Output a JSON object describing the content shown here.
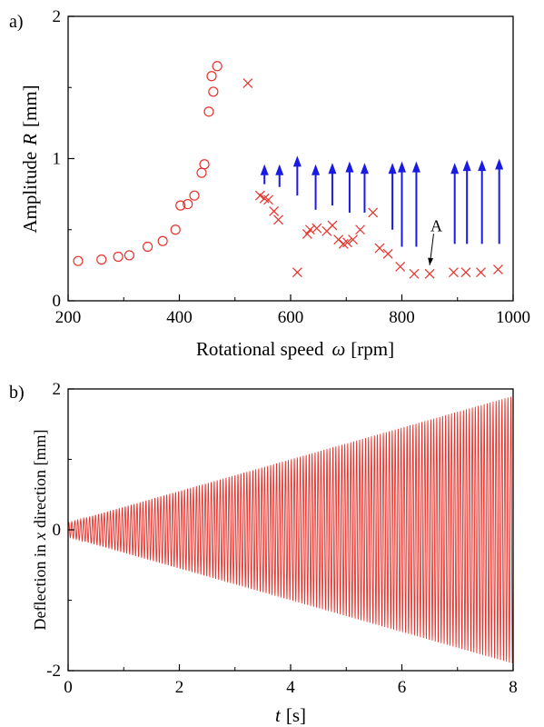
{
  "chart_data": [
    {
      "panel_label": "a)",
      "type": "scatter",
      "xlabel": {
        "text": "Rotational speed",
        "symbol": "ω",
        "unit": "[rpm]"
      },
      "ylabel": {
        "text": "Amplitude",
        "symbol": "R",
        "unit": "[mm]"
      },
      "xlim": [
        200,
        1000
      ],
      "ylim": [
        0,
        2
      ],
      "xticks": [
        "200",
        "400",
        "600",
        "800",
        "1000"
      ],
      "yticks": [
        "0",
        "1",
        "2"
      ],
      "colors": {
        "circles": "#e8322b",
        "crosses": "#e8322b",
        "arrows": "#1a1ae6"
      },
      "series": [
        {
          "marker": "circle",
          "points": [
            [
              218,
              0.28
            ],
            [
              260,
              0.29
            ],
            [
              290,
              0.31
            ],
            [
              310,
              0.32
            ],
            [
              343,
              0.38
            ],
            [
              370,
              0.42
            ],
            [
              393,
              0.5
            ],
            [
              402,
              0.67
            ],
            [
              415,
              0.68
            ],
            [
              427,
              0.74
            ],
            [
              440,
              0.9
            ],
            [
              445,
              0.96
            ],
            [
              453,
              1.33
            ],
            [
              458,
              1.58
            ],
            [
              461,
              1.47
            ],
            [
              468,
              1.65
            ]
          ]
        },
        {
          "marker": "cross",
          "points": [
            [
              523,
              1.53
            ],
            [
              545,
              0.74
            ],
            [
              553,
              0.72
            ],
            [
              560,
              0.71
            ],
            [
              570,
              0.63
            ],
            [
              578,
              0.57
            ],
            [
              612,
              0.2
            ],
            [
              630,
              0.47
            ],
            [
              635,
              0.5
            ],
            [
              647,
              0.51
            ],
            [
              665,
              0.49
            ],
            [
              675,
              0.53
            ],
            [
              686,
              0.43
            ],
            [
              695,
              0.4
            ],
            [
              702,
              0.41
            ],
            [
              712,
              0.43
            ],
            [
              725,
              0.5
            ],
            [
              748,
              0.62
            ],
            [
              760,
              0.37
            ],
            [
              775,
              0.33
            ],
            [
              797,
              0.24
            ],
            [
              822,
              0.19
            ],
            [
              850,
              0.19
            ],
            [
              893,
              0.2
            ],
            [
              915,
              0.2
            ],
            [
              942,
              0.2
            ],
            [
              973,
              0.22
            ]
          ]
        },
        {
          "marker": "arrow-up",
          "points": [
            [
              553,
              0.82,
              0.96
            ],
            [
              580,
              0.8,
              0.96
            ],
            [
              612,
              0.74,
              1.02
            ],
            [
              645,
              0.64,
              0.96
            ],
            [
              675,
              0.67,
              0.97
            ],
            [
              706,
              0.62,
              0.98
            ],
            [
              733,
              0.62,
              0.97
            ],
            [
              783,
              0.5,
              0.97
            ],
            [
              800,
              0.38,
              0.98
            ],
            [
              826,
              0.38,
              0.98
            ],
            [
              895,
              0.4,
              0.97
            ],
            [
              917,
              0.4,
              0.99
            ],
            [
              944,
              0.4,
              0.99
            ],
            [
              975,
              0.4,
              1.0
            ]
          ]
        }
      ],
      "annotation": {
        "text": "A",
        "x": 862,
        "y": 0.49,
        "target": [
          850,
          0.25
        ]
      }
    },
    {
      "panel_label": "b)",
      "type": "line",
      "xlabel": {
        "symbol": "t",
        "unit": "[s]"
      },
      "ylabel": {
        "text": "Deflection in",
        "symbol": "x",
        "text2": "direction [mm]"
      },
      "xlim": [
        0,
        8
      ],
      "ylim": [
        -2,
        2
      ],
      "xticks": [
        "0",
        "2",
        "4",
        "6",
        "8"
      ],
      "yticks": [
        "-2",
        "0",
        "2"
      ],
      "color": "#e8322b",
      "signal": {
        "form": "growing oscillation",
        "amplitude_start": 0.1,
        "amplitude_end": 1.9,
        "cycles": 150,
        "t_start": 0,
        "t_end": 8
      }
    }
  ]
}
